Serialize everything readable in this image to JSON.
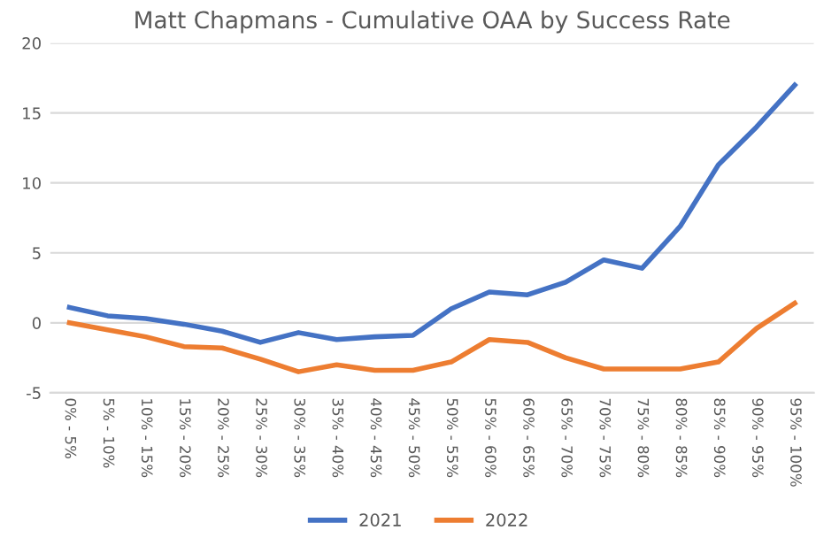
{
  "chart_data": {
    "type": "line",
    "title": "Matt Chapmans - Cumulative OAA by Success Rate",
    "categories": [
      "0% - 5%",
      "5% - 10%",
      "10% - 15%",
      "15% - 20%",
      "20% - 25%",
      "25% - 30%",
      "30% - 35%",
      "35% - 40%",
      "40% - 45%",
      "45% - 50%",
      "50% - 55%",
      "55% - 60%",
      "60% - 65%",
      "65% - 70%",
      "70% - 75%",
      "75% - 80%",
      "80% - 85%",
      "85% - 90%",
      "90% - 95%",
      "95% - 100%"
    ],
    "series": [
      {
        "name": "2021",
        "color": "#4472c4",
        "values": [
          1.1,
          0.5,
          0.3,
          -0.1,
          -0.6,
          -1.4,
          -0.7,
          -1.2,
          -1.0,
          -0.9,
          1.0,
          2.2,
          2.0,
          2.9,
          4.5,
          3.9,
          6.9,
          11.3,
          14.0,
          17.0
        ]
      },
      {
        "name": "2022",
        "color": "#ed7d31",
        "values": [
          0,
          -0.5,
          -1.0,
          -1.7,
          -1.8,
          -2.6,
          -3.5,
          -3.0,
          -3.4,
          -3.4,
          -2.8,
          -1.2,
          -1.4,
          -2.5,
          -3.3,
          -3.3,
          -3.3,
          -2.8,
          -0.4,
          1.4
        ]
      }
    ],
    "ylim": [
      -5,
      20
    ],
    "yticks": [
      -5,
      0,
      5,
      10,
      15,
      20
    ],
    "grid": "y",
    "legend": "bottom",
    "marker": "none",
    "line_style": "solid"
  }
}
